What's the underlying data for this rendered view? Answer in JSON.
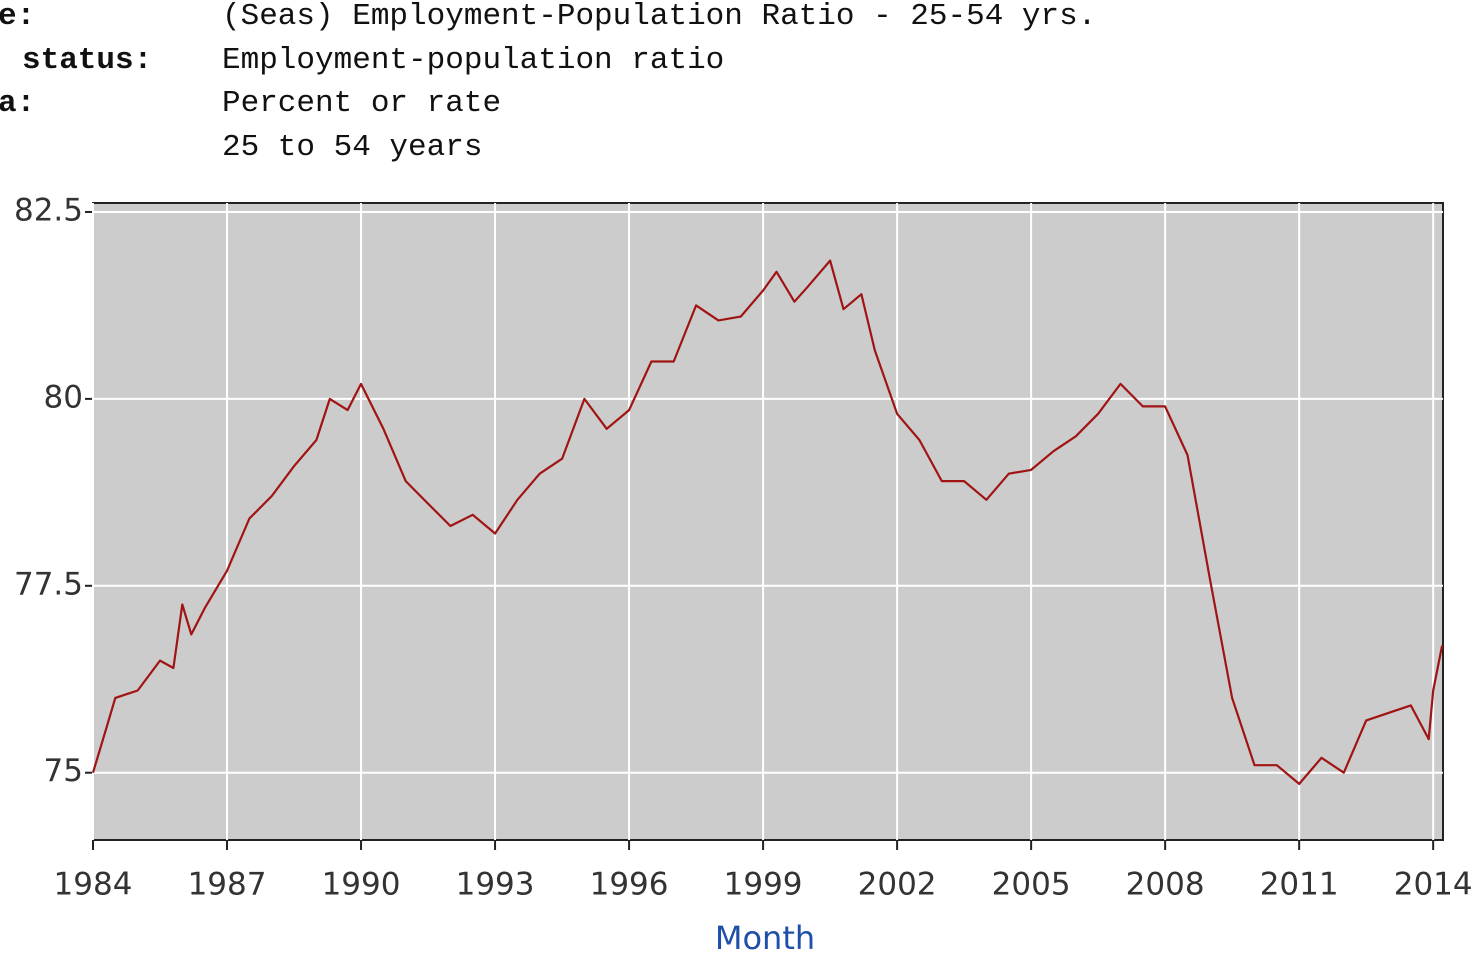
{
  "header": {
    "rows": [
      {
        "label": "e:",
        "value": "(Seas) Employment-Population Ratio - 25-54 yrs."
      },
      {
        "label": "status:",
        "value": "Employment-population ratio"
      },
      {
        "label": "a:",
        "value": "Percent or rate"
      },
      {
        "value": "25 to 54 years"
      }
    ]
  },
  "chart_data": {
    "type": "line",
    "xlabel": "Month",
    "color": "#a01414",
    "x": [
      1984.0,
      1984.3,
      1984.5,
      1985.0,
      1985.5,
      1985.8,
      1986.0,
      1986.2,
      1986.5,
      1987.0,
      1987.5,
      1988.0,
      1988.5,
      1989.0,
      1989.3,
      1989.7,
      1990.0,
      1990.5,
      1991.0,
      1991.5,
      1992.0,
      1992.5,
      1993.0,
      1993.5,
      1994.0,
      1994.5,
      1995.0,
      1995.5,
      1996.0,
      1996.5,
      1997.0,
      1997.5,
      1998.0,
      1998.5,
      1999.0,
      1999.3,
      1999.7,
      2000.0,
      2000.5,
      2000.8,
      2001.2,
      2001.5,
      2002.0,
      2002.5,
      2003.0,
      2003.5,
      2004.0,
      2004.5,
      2005.0,
      2005.5,
      2006.0,
      2006.5,
      2007.0,
      2007.5,
      2008.0,
      2008.5,
      2009.0,
      2009.5,
      2010.0,
      2010.5,
      2011.0,
      2011.5,
      2012.0,
      2012.5,
      2013.0,
      2013.5,
      2013.9,
      2014.0,
      2014.2
    ],
    "values": [
      75.0,
      75.6,
      76.0,
      76.1,
      76.5,
      76.4,
      77.25,
      76.85,
      77.2,
      77.7,
      78.4,
      78.7,
      79.1,
      79.45,
      80.0,
      79.85,
      80.2,
      79.6,
      78.9,
      78.6,
      78.3,
      78.45,
      78.2,
      78.65,
      79.0,
      79.2,
      80.0,
      79.6,
      79.85,
      80.5,
      80.5,
      81.25,
      81.05,
      81.1,
      81.45,
      81.7,
      81.3,
      81.5,
      81.85,
      81.2,
      81.4,
      80.65,
      79.8,
      79.45,
      78.9,
      78.9,
      78.65,
      79.0,
      79.05,
      79.3,
      79.5,
      79.8,
      80.2,
      79.9,
      79.9,
      79.25,
      77.6,
      76.0,
      75.1,
      75.1,
      74.85,
      75.2,
      75.0,
      75.7,
      75.8,
      75.9,
      75.45,
      76.1,
      76.7
    ],
    "xlim": [
      1984,
      2014.22
    ],
    "ylim": [
      74.1,
      82.62
    ],
    "xticks": [
      1984,
      1987,
      1990,
      1993,
      1996,
      1999,
      2002,
      2005,
      2008,
      2011,
      2014
    ],
    "yticks": [
      75,
      77.5,
      80,
      82.5
    ],
    "grid": true
  }
}
